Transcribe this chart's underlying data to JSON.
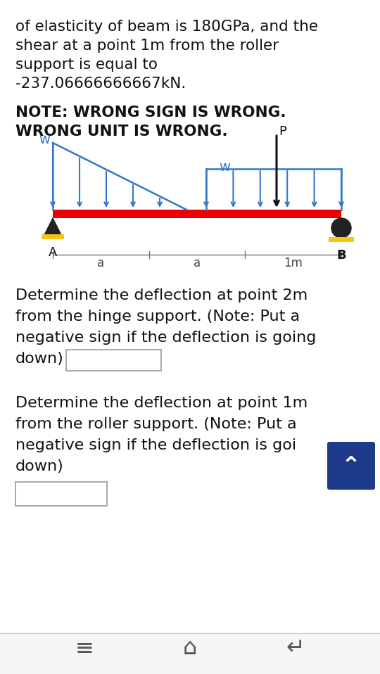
{
  "bg_color": "#ebebeb",
  "card_color": "#ffffff",
  "text_color": "#111111",
  "line1": "of elasticity of beam is 180GPa, and the",
  "line2": "shear at a point 1m from the roller",
  "line3": "support is equal to",
  "line4": "-237.06666666667kN.",
  "note1": "NOTE: WRONG SIGN IS WRONG.",
  "note2": "WRONG UNIT IS WRONG.",
  "beam_color": "#ee0000",
  "load_color": "#3377cc",
  "support_dark": "#222222",
  "support_yellow": "#f5c518",
  "label_A": "A",
  "label_B": "B",
  "label_w_left": "w",
  "label_w_right": "w",
  "label_P": "P",
  "label_a1": "a",
  "label_a2": "a",
  "label_1m": "1m",
  "q1_line1": "Determine the deflection at point 2m",
  "q1_line2": "from the hinge support. (Note: Put a",
  "q1_line3": "negative sign if the deflection is going",
  "q1_line4": "down)",
  "q2_line1": "Determine the deflection at point 1m",
  "q2_line2": "from the roller support. (Note: Put a",
  "q2_line3": "negative sign if the deflection is goi",
  "q2_line4": "down)",
  "scroll_btn_color": "#1e3a8a",
  "scroll_icon": "‹",
  "nav_color": "#f5f5f5"
}
